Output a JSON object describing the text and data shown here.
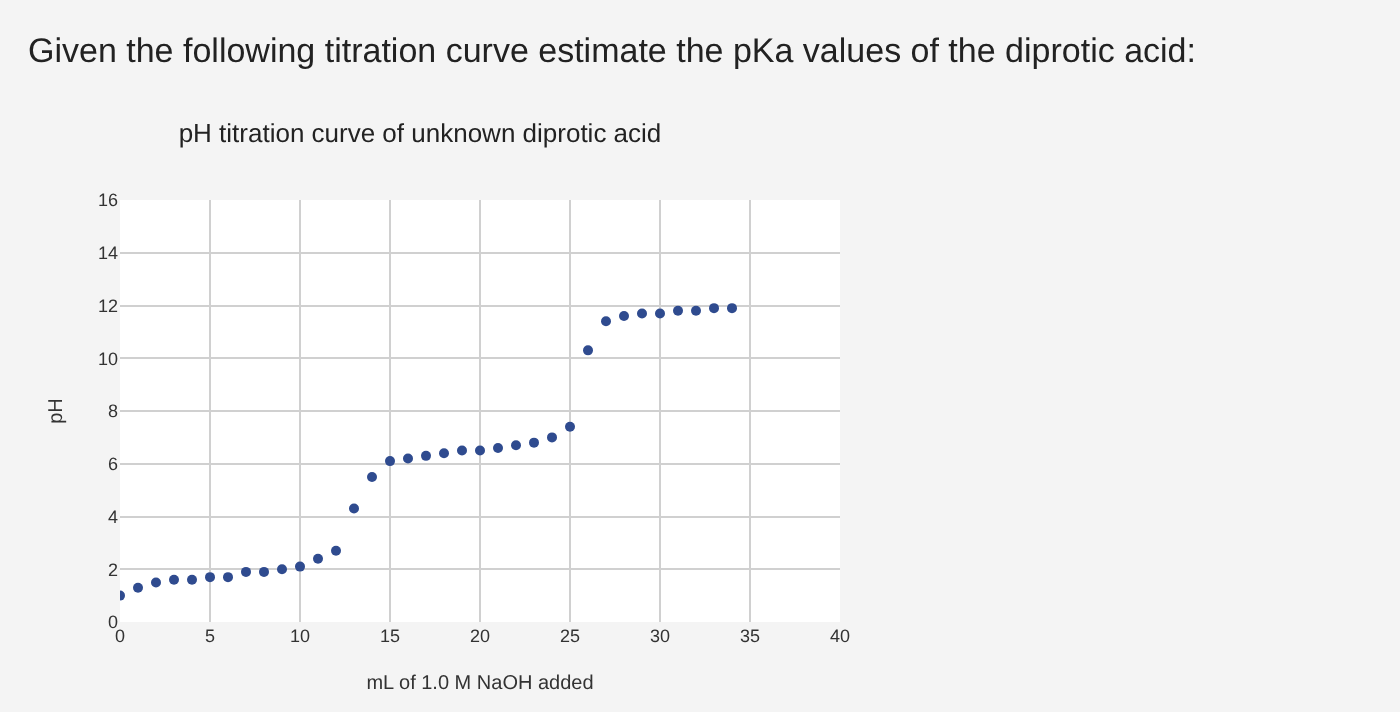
{
  "chart_data": {
    "type": "scatter",
    "title": "pH titration curve of unknown diprotic acid",
    "annotations": [
      "Given the following titration curve estimate the pKa values of the diprotic acid:"
    ],
    "xlabel": "mL of 1.0 M NaOH added",
    "ylabel": "pH",
    "x": [
      0,
      1,
      2,
      3,
      4,
      5,
      6,
      7,
      8,
      9,
      10,
      11,
      12,
      13,
      14,
      15,
      16,
      17,
      18,
      19,
      20,
      21,
      22,
      23,
      24,
      25,
      26,
      27,
      28,
      29,
      30,
      31,
      32,
      33,
      34
    ],
    "series": [
      {
        "color": "#2f4b8f",
        "values": [
          1.0,
          1.3,
          1.5,
          1.6,
          1.6,
          1.7,
          1.7,
          1.9,
          1.9,
          2.0,
          2.1,
          2.4,
          2.7,
          4.3,
          5.5,
          6.1,
          6.2,
          6.3,
          6.4,
          6.5,
          6.5,
          6.6,
          6.7,
          6.8,
          7.0,
          7.4,
          10.3,
          11.4,
          11.6,
          11.7,
          11.7,
          11.8,
          11.8,
          11.9,
          11.9
        ]
      }
    ],
    "xlim": [
      0,
      40
    ],
    "xticks": [
      0,
      5,
      10,
      15,
      20,
      25,
      30,
      35,
      40
    ],
    "ylim": [
      0,
      16
    ],
    "yticks": [
      0,
      2,
      4,
      6,
      8,
      10,
      12,
      14,
      16
    ],
    "grid": true
  }
}
